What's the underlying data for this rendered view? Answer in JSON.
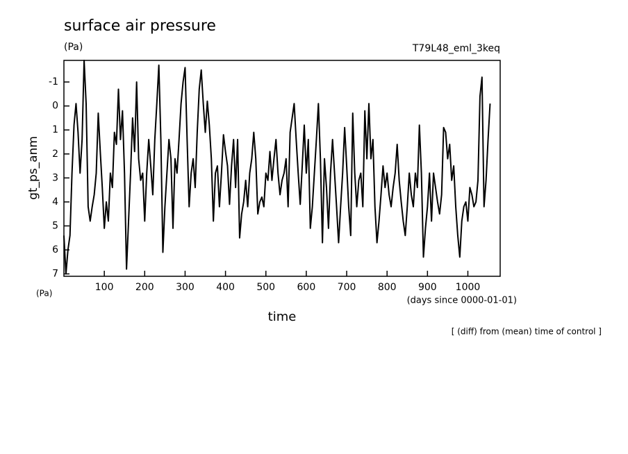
{
  "chart_data": {
    "type": "line",
    "title": "surface air pressure",
    "subtitle": "(Pa)",
    "run_label": "T79L48_eml_3keq",
    "y_label": "gt_ps_anm",
    "y_unit": "(Pa)",
    "x_label": "time",
    "x_unit": "(days since 0000-01-01)",
    "note": "[ (diff) from (mean) time of control ]",
    "xlim": [
      0,
      1080
    ],
    "xticks": [
      100,
      200,
      300,
      400,
      500,
      600,
      700,
      800,
      900,
      1000
    ],
    "ylim": [
      7.1,
      -1.9
    ],
    "yticks": [
      -1,
      0,
      1,
      2,
      3,
      4,
      5,
      6,
      7
    ],
    "color": "#000000",
    "x": [
      0,
      5,
      10,
      15,
      20,
      25,
      30,
      35,
      40,
      45,
      50,
      55,
      60,
      65,
      70,
      75,
      80,
      85,
      90,
      95,
      100,
      105,
      110,
      115,
      120,
      125,
      130,
      135,
      140,
      145,
      150,
      155,
      160,
      165,
      170,
      175,
      180,
      185,
      190,
      195,
      200,
      205,
      210,
      215,
      220,
      225,
      230,
      235,
      240,
      245,
      250,
      255,
      260,
      265,
      270,
      275,
      280,
      285,
      290,
      295,
      300,
      305,
      310,
      315,
      320,
      325,
      330,
      335,
      340,
      345,
      350,
      355,
      360,
      365,
      370,
      375,
      380,
      385,
      390,
      395,
      400,
      405,
      410,
      415,
      420,
      425,
      430,
      435,
      440,
      445,
      450,
      455,
      460,
      465,
      470,
      475,
      480,
      485,
      490,
      495,
      500,
      505,
      510,
      515,
      520,
      525,
      530,
      535,
      540,
      545,
      550,
      555,
      560,
      565,
      570,
      575,
      580,
      585,
      590,
      595,
      600,
      605,
      610,
      615,
      620,
      625,
      630,
      635,
      640,
      645,
      650,
      655,
      660,
      665,
      670,
      675,
      680,
      685,
      690,
      695,
      700,
      705,
      710,
      715,
      720,
      725,
      730,
      735,
      740,
      745,
      750,
      755,
      760,
      765,
      770,
      775,
      780,
      785,
      790,
      795,
      800,
      805,
      810,
      815,
      820,
      825,
      830,
      835,
      840,
      845,
      850,
      855,
      860,
      865,
      870,
      875,
      880,
      885,
      890,
      895,
      900,
      905,
      910,
      915,
      920,
      925,
      930,
      935,
      940,
      945,
      950,
      955,
      960,
      965,
      970,
      975,
      980,
      985,
      990,
      995,
      1000,
      1005,
      1010,
      1015,
      1020,
      1025,
      1030,
      1035,
      1040,
      1045,
      1050,
      1055
    ],
    "values": [
      5.4,
      7.0,
      6.0,
      5.4,
      2.8,
      0.8,
      -0.1,
      1.1,
      2.8,
      1.4,
      -1.9,
      -0.1,
      4.2,
      4.8,
      4.2,
      3.7,
      2.8,
      0.3,
      1.9,
      3.4,
      5.1,
      4.0,
      4.8,
      2.8,
      3.4,
      1.1,
      1.6,
      -0.7,
      1.4,
      0.2,
      2.8,
      6.8,
      4.8,
      2.8,
      0.5,
      1.9,
      -1.0,
      2.2,
      3.1,
      2.8,
      4.8,
      2.8,
      1.4,
      2.5,
      3.7,
      1.4,
      -0.1,
      -1.7,
      1.4,
      6.1,
      4.2,
      2.8,
      1.4,
      2.2,
      5.1,
      2.2,
      2.8,
      1.4,
      -0.1,
      -1.0,
      -1.6,
      1.4,
      4.2,
      2.8,
      2.2,
      3.4,
      1.1,
      -0.7,
      -1.5,
      -0.1,
      1.1,
      -0.2,
      0.8,
      2.2,
      4.8,
      2.8,
      2.5,
      4.2,
      2.8,
      1.2,
      1.9,
      2.5,
      4.1,
      2.5,
      1.4,
      3.4,
      1.4,
      5.5,
      4.5,
      4.0,
      3.1,
      4.2,
      2.8,
      2.2,
      1.1,
      2.2,
      4.5,
      4.0,
      3.8,
      4.2,
      2.8,
      3.1,
      1.9,
      3.1,
      2.2,
      1.4,
      2.8,
      3.7,
      3.1,
      2.8,
      2.2,
      4.2,
      1.1,
      0.5,
      -0.1,
      1.4,
      2.8,
      4.1,
      2.5,
      0.8,
      2.8,
      1.4,
      5.1,
      4.2,
      2.8,
      1.4,
      -0.1,
      2.2,
      5.7,
      2.2,
      3.4,
      5.1,
      2.8,
      1.4,
      2.8,
      4.2,
      5.7,
      4.2,
      2.8,
      0.9,
      2.5,
      4.2,
      5.4,
      0.3,
      2.8,
      4.2,
      3.1,
      2.8,
      4.2,
      0.2,
      2.2,
      -0.1,
      2.2,
      1.4,
      4.2,
      5.7,
      4.8,
      3.7,
      2.5,
      3.4,
      2.8,
      3.7,
      4.2,
      3.4,
      2.8,
      1.6,
      3.1,
      4.0,
      4.8,
      5.4,
      4.2,
      2.8,
      3.7,
      4.2,
      2.8,
      3.4,
      0.8,
      2.8,
      6.3,
      5.1,
      4.2,
      2.8,
      4.8,
      2.8,
      3.4,
      4.0,
      4.5,
      3.7,
      0.9,
      1.1,
      2.2,
      1.6,
      3.1,
      2.5,
      4.2,
      5.4,
      6.3,
      4.8,
      4.2,
      4.0,
      4.8,
      3.4,
      3.7,
      4.2,
      4.0,
      3.1,
      -0.4,
      -1.2,
      4.2,
      3.1,
      1.4,
      -0.1
    ]
  }
}
